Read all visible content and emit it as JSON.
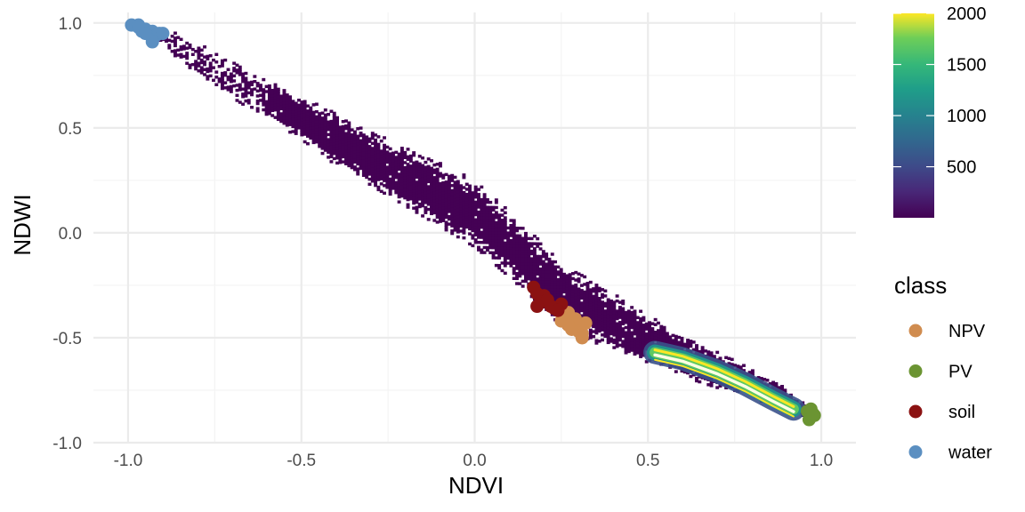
{
  "chart_data": {
    "type": "scatter",
    "xlabel": "NDVI",
    "ylabel": "NDWI",
    "xlim": [
      -1.1,
      1.1
    ],
    "ylim": [
      -1.0,
      1.05
    ],
    "xticks": [
      -1.0,
      -0.5,
      0.0,
      0.5,
      1.0
    ],
    "yticks": [
      -1.0,
      -0.5,
      0.0,
      0.5,
      1.0
    ],
    "xtick_labels": [
      "-1.0",
      "-0.5",
      "0.0",
      "0.5",
      "1.0"
    ],
    "ytick_labels": [
      "-1.0",
      "-0.5",
      "0.0",
      "0.5",
      "1.0"
    ],
    "grid": true,
    "density_layer": {
      "type": "heatmap",
      "colormap": "viridis",
      "range": [
        1,
        2000
      ],
      "colorbar_ticks": [
        500,
        1000,
        1500,
        2000
      ],
      "colorbar_labels": [
        "500",
        "1000",
        "1500",
        "2000"
      ],
      "ridge": [
        [
          -0.95,
          0.96
        ],
        [
          -0.6,
          0.63
        ],
        [
          -0.3,
          0.34
        ],
        [
          0.0,
          0.08
        ],
        [
          0.25,
          -0.3
        ],
        [
          0.5,
          -0.52
        ],
        [
          0.7,
          -0.66
        ],
        [
          0.85,
          -0.76
        ],
        [
          0.96,
          -0.86
        ]
      ],
      "core_arc": [
        [
          0.52,
          -0.57
        ],
        [
          0.6,
          -0.6
        ],
        [
          0.7,
          -0.66
        ],
        [
          0.78,
          -0.72
        ],
        [
          0.86,
          -0.79
        ],
        [
          0.92,
          -0.84
        ]
      ]
    },
    "legend": {
      "title": "class",
      "placement": "right"
    },
    "series": [
      {
        "name": "NPV",
        "color": "#d08c4f",
        "points": [
          [
            0.25,
            -0.42
          ],
          [
            0.27,
            -0.38
          ],
          [
            0.28,
            -0.43
          ],
          [
            0.29,
            -0.45
          ],
          [
            0.3,
            -0.47
          ],
          [
            0.31,
            -0.48
          ],
          [
            0.3,
            -0.44
          ],
          [
            0.32,
            -0.43
          ],
          [
            0.28,
            -0.46
          ],
          [
            0.31,
            -0.5
          ],
          [
            0.29,
            -0.41
          ],
          [
            0.27,
            -0.44
          ]
        ]
      },
      {
        "name": "PV",
        "color": "#6b9432",
        "points": [
          [
            0.96,
            -0.85
          ],
          [
            0.97,
            -0.87
          ],
          [
            0.98,
            -0.87
          ],
          [
            0.965,
            -0.89
          ],
          [
            0.975,
            -0.86
          ],
          [
            0.97,
            -0.84
          ]
        ]
      },
      {
        "name": "soil",
        "color": "#8b1212",
        "points": [
          [
            0.17,
            -0.26
          ],
          [
            0.18,
            -0.29
          ],
          [
            0.2,
            -0.3
          ],
          [
            0.19,
            -0.33
          ],
          [
            0.21,
            -0.32
          ],
          [
            0.23,
            -0.36
          ],
          [
            0.25,
            -0.34
          ],
          [
            0.22,
            -0.35
          ],
          [
            0.24,
            -0.37
          ],
          [
            0.18,
            -0.35
          ]
        ]
      },
      {
        "name": "water",
        "color": "#5b8fc1",
        "points": [
          [
            -0.99,
            0.99
          ],
          [
            -0.97,
            0.98
          ],
          [
            -0.96,
            0.96
          ],
          [
            -0.95,
            0.97
          ],
          [
            -0.94,
            0.95
          ],
          [
            -0.93,
            0.96
          ],
          [
            -0.92,
            0.94
          ],
          [
            -0.91,
            0.95
          ],
          [
            -0.93,
            0.91
          ],
          [
            -0.9,
            0.95
          ],
          [
            -0.97,
            0.99
          ],
          [
            -0.95,
            0.95
          ]
        ]
      }
    ]
  }
}
